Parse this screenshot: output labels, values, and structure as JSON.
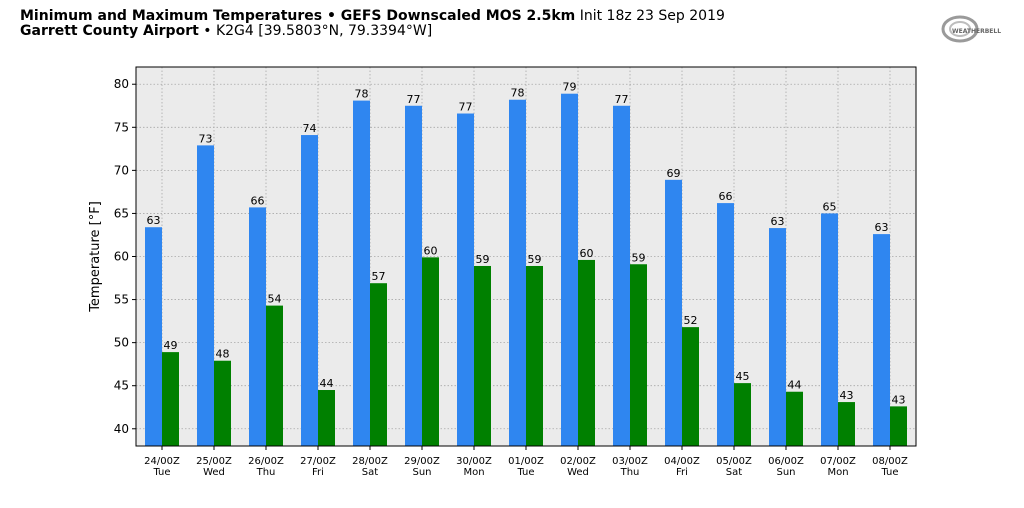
{
  "header": {
    "line1_bold": "Minimum and Maximum Temperatures • GEFS Downscaled MOS 2.5km",
    "line1_rest": "Init 18z 23 Sep 2019",
    "line2_bold": "Garrett County Airport",
    "line2_rest": "• K2G4 [39.5803°N, 79.3394°W]",
    "logo_text": "WEATHERBELL"
  },
  "chart_data": {
    "type": "bar",
    "ylabel": "Temperature [°F]",
    "xlabel": "",
    "ylim": [
      38,
      82
    ],
    "yticks": [
      40,
      45,
      50,
      55,
      60,
      65,
      70,
      75,
      80
    ],
    "grid": true,
    "categories": [
      "24/00Z Tue",
      "25/00Z Wed",
      "26/00Z Thu",
      "27/00Z Fri",
      "28/00Z Sat",
      "29/00Z Sun",
      "30/00Z Mon",
      "01/00Z Tue",
      "02/00Z Wed",
      "03/00Z Thu",
      "04/00Z Fri",
      "05/00Z Sat",
      "06/00Z Sun",
      "07/00Z Mon",
      "08/00Z Tue"
    ],
    "category_lines": [
      [
        "24/00Z",
        "Tue"
      ],
      [
        "25/00Z",
        "Wed"
      ],
      [
        "26/00Z",
        "Thu"
      ],
      [
        "27/00Z",
        "Fri"
      ],
      [
        "28/00Z",
        "Sat"
      ],
      [
        "29/00Z",
        "Sun"
      ],
      [
        "30/00Z",
        "Mon"
      ],
      [
        "01/00Z",
        "Tue"
      ],
      [
        "02/00Z",
        "Wed"
      ],
      [
        "03/00Z",
        "Thu"
      ],
      [
        "04/00Z",
        "Fri"
      ],
      [
        "05/00Z",
        "Sat"
      ],
      [
        "06/00Z",
        "Sun"
      ],
      [
        "07/00Z",
        "Mon"
      ],
      [
        "08/00Z",
        "Tue"
      ]
    ],
    "series": [
      {
        "color": "#2f86f0",
        "values": [
          63.4,
          72.9,
          65.7,
          74.1,
          78.1,
          77.5,
          76.6,
          78.2,
          78.9,
          77.5,
          68.9,
          66.2,
          63.3,
          65.0,
          62.6
        ],
        "labels": [
          "63",
          "73",
          "66",
          "74",
          "78",
          "77",
          "77",
          "78",
          "79",
          "77",
          "69",
          "66",
          "63",
          "65",
          "63"
        ]
      },
      {
        "color": "#008000",
        "values": [
          48.9,
          47.9,
          54.3,
          44.5,
          56.9,
          59.9,
          58.9,
          58.9,
          59.6,
          59.1,
          51.8,
          45.3,
          44.3,
          43.1,
          42.6
        ],
        "labels": [
          "49",
          "48",
          "54",
          "44",
          "57",
          "60",
          "59",
          "59",
          "60",
          "59",
          "52",
          "45",
          "44",
          "43",
          "43"
        ]
      }
    ]
  }
}
